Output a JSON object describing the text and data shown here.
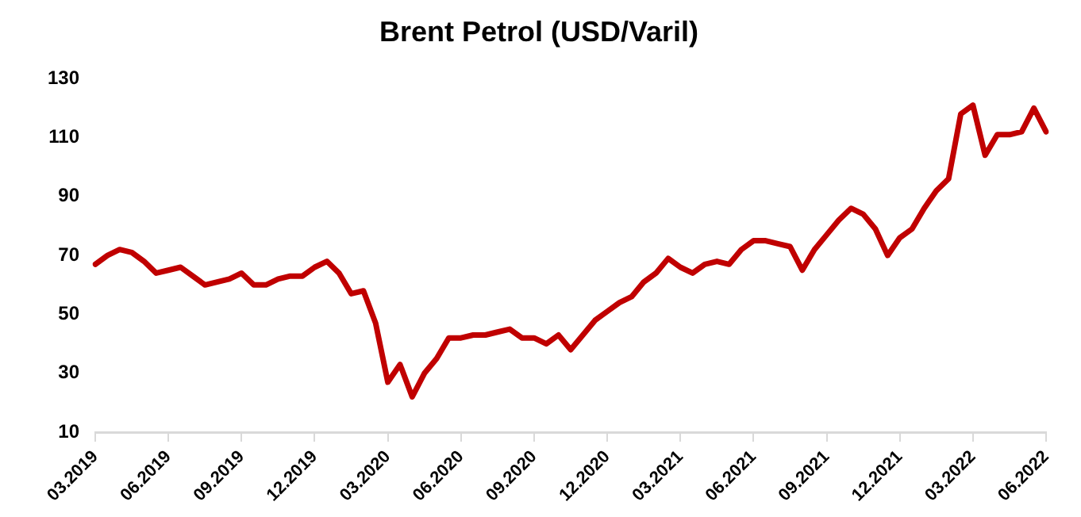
{
  "chart_data": {
    "type": "line",
    "title": "Brent Petrol (USD/Varil)",
    "categories": [
      "03.2019",
      null,
      null,
      null,
      null,
      null,
      "06.2019",
      null,
      null,
      null,
      null,
      null,
      "09.2019",
      null,
      null,
      null,
      null,
      null,
      "12.2019",
      null,
      null,
      null,
      null,
      null,
      "03.2020",
      null,
      null,
      null,
      null,
      null,
      "06.2020",
      null,
      null,
      null,
      null,
      null,
      "09.2020",
      null,
      null,
      null,
      null,
      null,
      "12.2020",
      null,
      null,
      null,
      null,
      null,
      "03.2021",
      null,
      null,
      null,
      null,
      null,
      "06.2021",
      null,
      null,
      null,
      null,
      null,
      "09.2021",
      null,
      null,
      null,
      null,
      null,
      "12.2021",
      null,
      null,
      null,
      null,
      null,
      "03.2022",
      null,
      null,
      null,
      null,
      null,
      "06.2022"
    ],
    "series": [
      {
        "color": "#c00000",
        "values": [
          67,
          70,
          72,
          71,
          68,
          64,
          65,
          66,
          63,
          60,
          61,
          62,
          64,
          60,
          60,
          62,
          63,
          63,
          66,
          68,
          64,
          57,
          58,
          47,
          27,
          33,
          22,
          30,
          35,
          42,
          42,
          43,
          43,
          44,
          45,
          42,
          42,
          40,
          43,
          38,
          43,
          48,
          51,
          54,
          56,
          61,
          64,
          69,
          66,
          64,
          67,
          68,
          67,
          72,
          75,
          75,
          74,
          73,
          65,
          72,
          77,
          82,
          86,
          84,
          79,
          70,
          76,
          79,
          86,
          92,
          96,
          118,
          121,
          104,
          111,
          111,
          112,
          120,
          112
        ]
      }
    ],
    "ylim": [
      10,
      130
    ],
    "yticks": [
      10,
      30,
      50,
      70,
      90,
      110,
      130
    ],
    "grid": false,
    "legend": false,
    "marker": "none",
    "line_style": "solid"
  }
}
